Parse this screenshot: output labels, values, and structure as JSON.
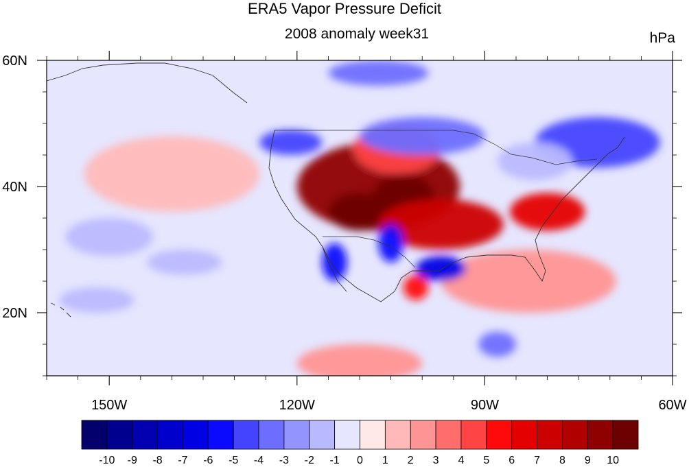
{
  "header": {
    "title": "ERA5 Vapor Pressure Deficit",
    "subtitle": "2008 anomaly week31",
    "units": "hPa"
  },
  "map": {
    "projection": "cylindrical-equidistant",
    "lon_range": [
      -160,
      -60
    ],
    "lat_range": [
      10,
      60
    ],
    "lon_ticks": [
      {
        "value": -150,
        "label": "150W"
      },
      {
        "value": -120,
        "label": "120W"
      },
      {
        "value": -90,
        "label": "90W"
      },
      {
        "value": -60,
        "label": "60W"
      }
    ],
    "lat_ticks": [
      {
        "value": 60,
        "label": "60N"
      },
      {
        "value": 40,
        "label": "40N"
      },
      {
        "value": 20,
        "label": "20N"
      }
    ],
    "anomaly_regions": [
      {
        "lon": -107,
        "lat": 40,
        "value": 9,
        "rx": 13,
        "ry": 7
      },
      {
        "lon": -103,
        "lat": 38,
        "value": 10,
        "rx": 5,
        "ry": 4
      },
      {
        "lon": -110,
        "lat": 36,
        "value": 10,
        "rx": 5,
        "ry": 3
      },
      {
        "lon": -97,
        "lat": 34,
        "value": 7,
        "rx": 10,
        "ry": 4
      },
      {
        "lon": -80,
        "lat": 36,
        "value": 6,
        "rx": 6,
        "ry": 3
      },
      {
        "lon": -104,
        "lat": 46,
        "value": 4,
        "rx": 7,
        "ry": 4
      },
      {
        "lon": -101,
        "lat": 24,
        "value": 5,
        "rx": 2,
        "ry": 2
      },
      {
        "lon": -83,
        "lat": 25,
        "value": 2,
        "rx": 14,
        "ry": 5
      },
      {
        "lon": -110,
        "lat": 12,
        "value": 2,
        "rx": 10,
        "ry": 3
      },
      {
        "lon": -140,
        "lat": 42,
        "value": 1,
        "rx": 14,
        "ry": 6
      },
      {
        "lon": -100,
        "lat": 48,
        "value": -4,
        "rx": 10,
        "ry": 3
      },
      {
        "lon": -121,
        "lat": 47,
        "value": -5,
        "rx": 5,
        "ry": 2
      },
      {
        "lon": -97,
        "lat": 27,
        "value": -7,
        "rx": 4,
        "ry": 2
      },
      {
        "lon": -105,
        "lat": 31,
        "value": -6,
        "rx": 2,
        "ry": 3
      },
      {
        "lon": -114,
        "lat": 28,
        "value": -6,
        "rx": 2,
        "ry": 3
      },
      {
        "lon": -72,
        "lat": 47,
        "value": -5,
        "rx": 10,
        "ry": 4
      },
      {
        "lon": -82,
        "lat": 44,
        "value": -2,
        "rx": 6,
        "ry": 3
      },
      {
        "lon": -107,
        "lat": 58,
        "value": -4,
        "rx": 8,
        "ry": 2
      },
      {
        "lon": -88,
        "lat": 15,
        "value": -4,
        "rx": 3,
        "ry": 2
      },
      {
        "lon": -150,
        "lat": 32,
        "value": -2,
        "rx": 7,
        "ry": 3
      },
      {
        "lon": -138,
        "lat": 28,
        "value": -2,
        "rx": 6,
        "ry": 2
      },
      {
        "lon": -152,
        "lat": 22,
        "value": -2,
        "rx": 6,
        "ry": 2
      }
    ]
  },
  "colorbar": {
    "labels": [
      "-10",
      "-9",
      "-8",
      "-7",
      "-6",
      "-5",
      "-4",
      "-3",
      "-2",
      "-1",
      "0",
      "1",
      "2",
      "3",
      "4",
      "5",
      "6",
      "7",
      "8",
      "9",
      "10"
    ],
    "colors": [
      "#03006d",
      "#00008f",
      "#0000b0",
      "#0000cc",
      "#0000e5",
      "#0a0aff",
      "#4444ff",
      "#6d6dff",
      "#9494ff",
      "#b9b9ff",
      "#e6e6ff",
      "#ffe8e8",
      "#ffb9b9",
      "#ff9494",
      "#ff6d6d",
      "#ff4444",
      "#ff0a0a",
      "#e50000",
      "#cc0000",
      "#b00000",
      "#8f0000",
      "#6d0000"
    ]
  }
}
